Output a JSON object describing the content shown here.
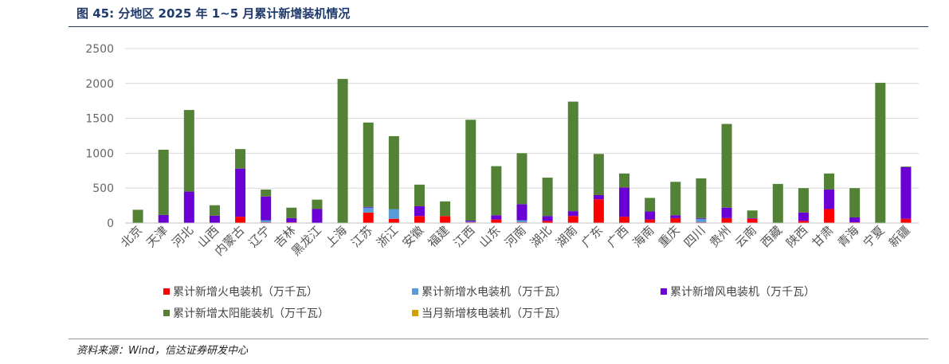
{
  "figure": {
    "title": "图 45:  分地区 2025 年 1~5 月累计新增装机情况",
    "source": "资料来源：Wind，信达证券研发中心"
  },
  "chart_data": {
    "type": "bar",
    "stacked": true,
    "ylim": [
      0,
      2500
    ],
    "yticks": [
      0,
      500,
      1000,
      1500,
      2000,
      2500
    ],
    "grid": true,
    "legend_position": "bottom",
    "categories": [
      "北京",
      "天津",
      "河北",
      "山西",
      "内蒙古",
      "辽宁",
      "吉林",
      "黑龙江",
      "上海",
      "江苏",
      "浙江",
      "安徽",
      "福建",
      "江西",
      "山东",
      "河南",
      "湖北",
      "湖南",
      "广东",
      "广西",
      "海南",
      "重庆",
      "四川",
      "贵州",
      "云南",
      "西藏",
      "陕西",
      "甘肃",
      "青海",
      "宁夏",
      "新疆"
    ],
    "series": [
      {
        "name": "累计新增火电装机（万千瓦）",
        "color": "#ff0000",
        "values": [
          0,
          5,
          5,
          5,
          90,
          10,
          10,
          5,
          0,
          150,
          60,
          100,
          100,
          10,
          50,
          10,
          30,
          100,
          340,
          90,
          50,
          70,
          10,
          70,
          60,
          0,
          30,
          200,
          10,
          0,
          60
        ]
      },
      {
        "name": "累计新增水电装机（万千瓦）",
        "color": "#5b9bd5",
        "values": [
          0,
          0,
          0,
          0,
          0,
          30,
          0,
          0,
          0,
          70,
          140,
          0,
          0,
          10,
          0,
          30,
          0,
          0,
          0,
          0,
          0,
          0,
          50,
          0,
          0,
          0,
          0,
          0,
          0,
          0,
          0
        ]
      },
      {
        "name": "累计新增风电装机（万千瓦）",
        "color": "#6a00d4",
        "values": [
          0,
          110,
          445,
          100,
          690,
          340,
          60,
          195,
          0,
          10,
          0,
          140,
          0,
          15,
          60,
          230,
          70,
          70,
          60,
          420,
          115,
          40,
          10,
          150,
          10,
          0,
          120,
          280,
          70,
          0,
          740
        ]
      },
      {
        "name": "累计新增太阳能装机（万千瓦）",
        "color": "#538135",
        "values": [
          190,
          935,
          1170,
          150,
          280,
          100,
          150,
          135,
          2065,
          1210,
          1045,
          310,
          210,
          1445,
          705,
          730,
          550,
          1570,
          590,
          200,
          195,
          480,
          570,
          1200,
          110,
          560,
          350,
          230,
          420,
          2010,
          10
        ]
      },
      {
        "name": "当月新增核电装机（万千瓦）",
        "color": "#d4a000",
        "values": [
          0,
          0,
          0,
          0,
          0,
          0,
          0,
          0,
          0,
          0,
          0,
          0,
          0,
          0,
          0,
          0,
          0,
          0,
          0,
          0,
          0,
          0,
          0,
          0,
          0,
          0,
          0,
          0,
          0,
          0,
          0
        ]
      }
    ]
  }
}
